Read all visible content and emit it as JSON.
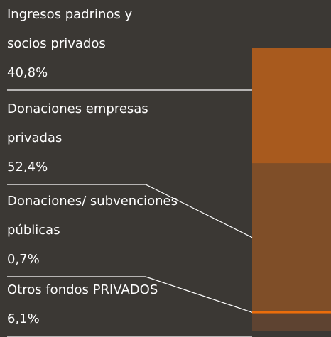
{
  "chart_data": {
    "type": "stacked-bar",
    "series": [
      {
        "name": "Ingresos padrinos y socios privados",
        "color": "#a85a1e",
        "values": [
          40.8
        ],
        "value_labels": [
          "40,8%"
        ]
      },
      {
        "name": "Donaciones empresas privadas",
        "color": "#7f4e28",
        "values": [
          52.4
        ],
        "value_labels": [
          "52,4%"
        ]
      },
      {
        "name": "Donaciones/ subvenciones públicas",
        "color": "#ec6d0b",
        "values": [
          0.7
        ],
        "value_labels": [
          "0,7%"
        ]
      },
      {
        "name": "Otros fondos PRIVADOS",
        "color": "#5e4331",
        "values": [
          6.1
        ],
        "value_labels": [
          "6,1%"
        ]
      }
    ],
    "ylim": [
      0,
      100
    ]
  }
}
